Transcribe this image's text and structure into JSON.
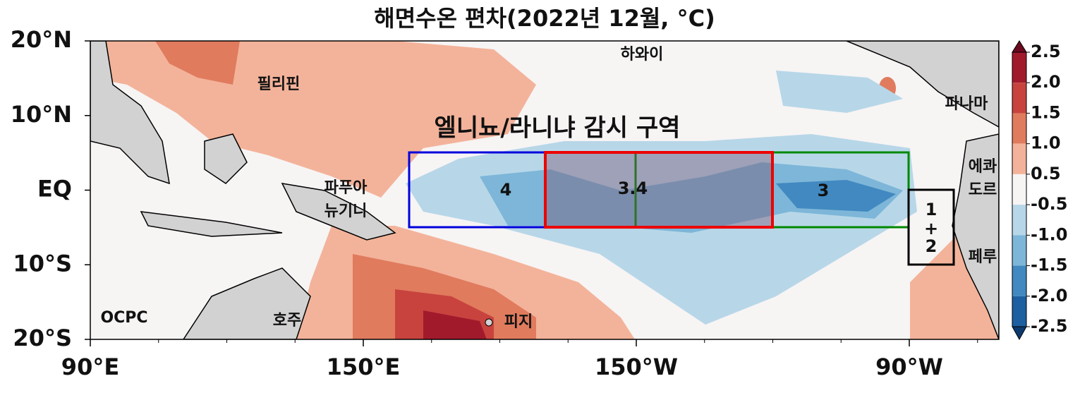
{
  "title": "해면수온 편차(2022년 12월, °C)",
  "lat_ticks": [
    "20°N",
    "10°N",
    "EQ",
    "10°S",
    "20°S"
  ],
  "lon_ticks": [
    "90°E",
    "150°E",
    "150°W",
    "90°W"
  ],
  "places": {
    "hawaii": "하와이",
    "philippines": "필리핀",
    "panama": "파나마",
    "ecuador": [
      "에콰",
      "도르"
    ],
    "peru": "페루",
    "papua_new_guinea": [
      "파푸아",
      "뉴기니"
    ],
    "australia": "호주",
    "fiji": "피지"
  },
  "annotation": "엘니뇨/라니냐 감시 구역",
  "regions": {
    "nino4": "4",
    "nino34": "3.4",
    "nino3": "3",
    "nino12": [
      "1",
      "+",
      "2"
    ]
  },
  "credit": "OCPC",
  "colorbar": {
    "ticks": [
      {
        "value": 2.5,
        "label": "2.5"
      },
      {
        "value": 2,
        "label": "2.0"
      },
      {
        "value": 1.5,
        "label": "1.5"
      },
      {
        "value": 1,
        "label": "1.0"
      },
      {
        "value": 0.5,
        "label": "0.5"
      },
      {
        "value": -0.5,
        "label": "-0.5"
      },
      {
        "value": -1,
        "label": "-1.0"
      },
      {
        "value": -1.5,
        "label": "-1.5"
      },
      {
        "value": -2,
        "label": "-2.0"
      },
      {
        "value": -2.5,
        "label": "-2.5"
      }
    ],
    "colors": [
      "#6b0a1f",
      "#a11a2c",
      "#c8433e",
      "#e07b5e",
      "#f3b39a",
      "#f7f4f4",
      "#b7d7e8",
      "#7db6d8",
      "#4189c0",
      "#1d5fa0",
      "#0c3a6e"
    ]
  }
}
